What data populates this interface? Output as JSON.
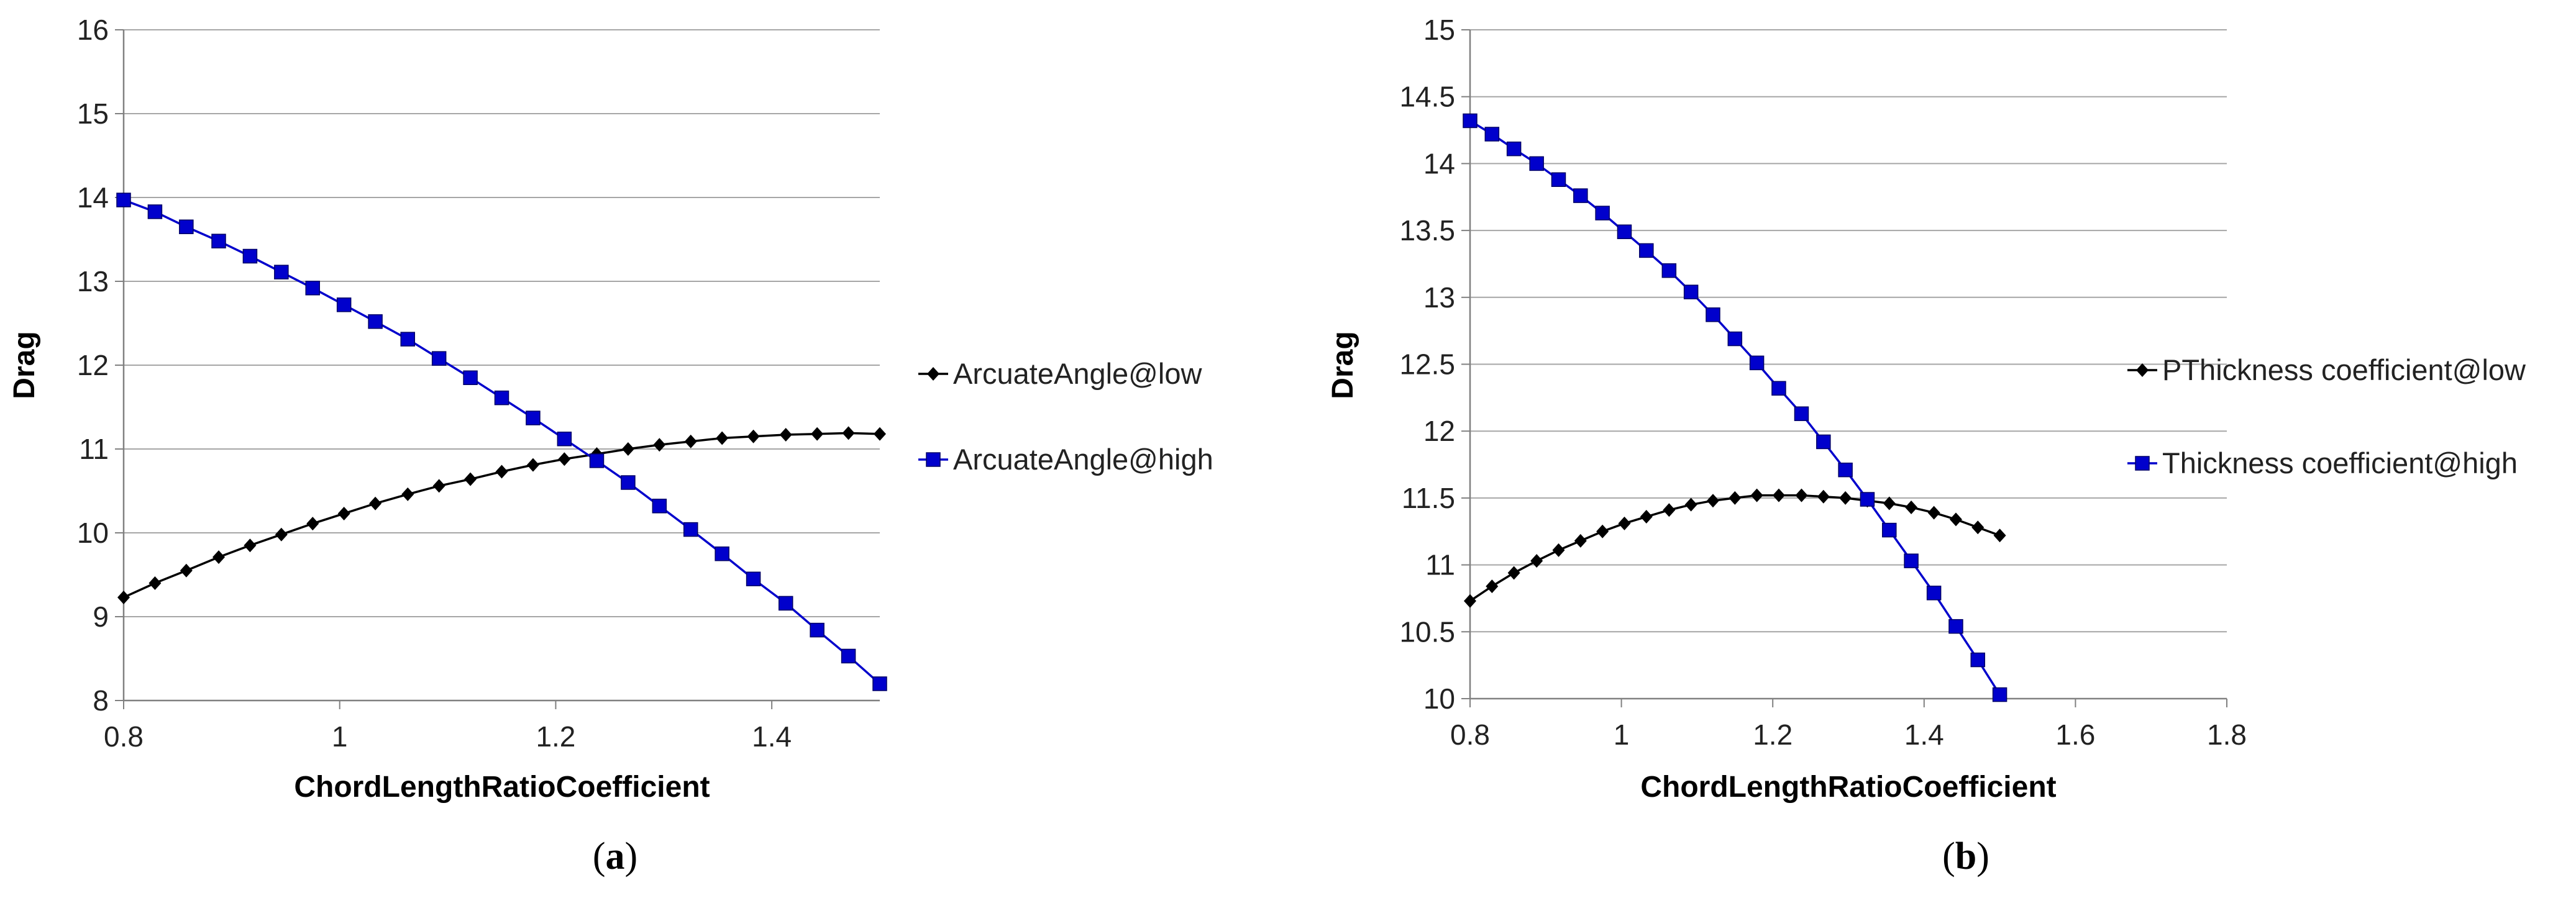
{
  "chart_data": [
    {
      "type": "line",
      "panel_label": "(a)",
      "caption": {
        "open": "(",
        "letter": "a",
        "close": ")"
      },
      "title": "",
      "xlabel": "ChordLengthRatioCoefficient",
      "ylabel": "Drag",
      "xlim": [
        0.8,
        1.5
      ],
      "ylim": [
        8,
        16
      ],
      "xticks": [
        "0.8",
        "1",
        "1.2",
        "1.4"
      ],
      "yticks": [
        "8",
        "9",
        "10",
        "11",
        "12",
        "13",
        "14",
        "15",
        "16"
      ],
      "grid": "horizontal",
      "legend_position": "right",
      "series": [
        {
          "name": "ArcuateAngle@low",
          "color": "#000000",
          "marker": "diamond",
          "x": [
            0.8,
            0.829,
            0.858,
            0.888,
            0.917,
            0.946,
            0.975,
            1.004,
            1.033,
            1.063,
            1.092,
            1.121,
            1.15,
            1.179,
            1.208,
            1.238,
            1.267,
            1.296,
            1.325,
            1.354,
            1.383,
            1.413,
            1.442,
            1.471,
            1.5
          ],
          "y": [
            9.23,
            9.4,
            9.55,
            9.71,
            9.85,
            9.98,
            10.11,
            10.23,
            10.35,
            10.46,
            10.56,
            10.64,
            10.73,
            10.81,
            10.88,
            10.94,
            11.0,
            11.05,
            11.09,
            11.13,
            11.15,
            11.17,
            11.18,
            11.19,
            11.18
          ]
        },
        {
          "name": "ArcuateAngle@high",
          "color": "#0000cc",
          "marker": "square",
          "x": [
            0.8,
            0.829,
            0.858,
            0.888,
            0.917,
            0.946,
            0.975,
            1.004,
            1.033,
            1.063,
            1.092,
            1.121,
            1.15,
            1.179,
            1.208,
            1.238,
            1.267,
            1.296,
            1.325,
            1.354,
            1.383,
            1.413,
            1.442,
            1.471,
            1.5
          ],
          "y": [
            13.97,
            13.83,
            13.65,
            13.48,
            13.3,
            13.11,
            12.92,
            12.72,
            12.52,
            12.31,
            12.08,
            11.85,
            11.61,
            11.37,
            11.12,
            10.86,
            10.6,
            10.32,
            10.04,
            9.75,
            9.45,
            9.16,
            8.84,
            8.53,
            8.2
          ]
        }
      ]
    },
    {
      "type": "line",
      "panel_label": "(b)",
      "caption": {
        "open": "(",
        "letter": "b",
        "close": ")"
      },
      "title": "",
      "xlabel": "ChordLengthRatioCoefficient",
      "ylabel": "Drag",
      "xlim": [
        0.8,
        1.8
      ],
      "ylim": [
        10,
        15
      ],
      "xticks": [
        "0.8",
        "1",
        "1.2",
        "1.4",
        "1.6",
        "1.8"
      ],
      "yticks": [
        "10",
        "10.5",
        "11",
        "11.5",
        "12",
        "12.5",
        "13",
        "13.5",
        "14",
        "14.5",
        "15"
      ],
      "grid": "horizontal",
      "legend_position": "right",
      "series": [
        {
          "name": "PThickness coefficient@low",
          "color": "#000000",
          "marker": "diamond",
          "x": [
            0.8,
            0.829,
            0.858,
            0.888,
            0.917,
            0.946,
            0.975,
            1.004,
            1.033,
            1.063,
            1.092,
            1.121,
            1.15,
            1.179,
            1.208,
            1.238,
            1.267,
            1.296,
            1.325,
            1.354,
            1.383,
            1.413,
            1.442,
            1.471,
            1.5
          ],
          "y": [
            10.73,
            10.84,
            10.94,
            11.03,
            11.11,
            11.18,
            11.25,
            11.31,
            11.36,
            11.41,
            11.45,
            11.48,
            11.5,
            11.52,
            11.52,
            11.52,
            11.51,
            11.5,
            11.48,
            11.46,
            11.43,
            11.39,
            11.34,
            11.28,
            11.22
          ]
        },
        {
          "name": "Thickness coefficient@high",
          "color": "#0000cc",
          "marker": "square",
          "x": [
            0.8,
            0.829,
            0.858,
            0.888,
            0.917,
            0.946,
            0.975,
            1.004,
            1.033,
            1.063,
            1.092,
            1.121,
            1.15,
            1.179,
            1.208,
            1.238,
            1.267,
            1.296,
            1.325,
            1.354,
            1.383,
            1.413,
            1.442,
            1.471,
            1.5
          ],
          "y": [
            14.32,
            14.22,
            14.11,
            14.0,
            13.88,
            13.76,
            13.63,
            13.49,
            13.35,
            13.2,
            13.04,
            12.87,
            12.69,
            12.51,
            12.32,
            12.13,
            11.92,
            11.71,
            11.49,
            11.26,
            11.03,
            10.79,
            10.54,
            10.29,
            10.03
          ]
        }
      ]
    }
  ]
}
